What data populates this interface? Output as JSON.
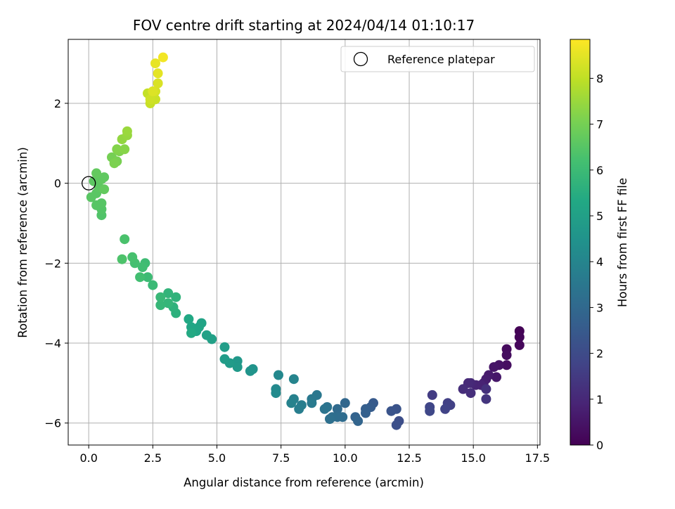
{
  "chart_data": {
    "type": "scatter",
    "title": "FOV centre drift starting at 2024/04/14 01:10:17",
    "xlabel": "Angular distance from reference (arcmin)",
    "ylabel": "Rotation from reference (arcmin)",
    "xlim": [
      -0.8,
      17.6
    ],
    "ylim": [
      -6.55,
      3.6
    ],
    "xticks": [
      0.0,
      2.5,
      5.0,
      7.5,
      10.0,
      12.5,
      15.0,
      17.5
    ],
    "xtick_labels": [
      "0.0",
      "2.5",
      "5.0",
      "7.5",
      "10.0",
      "12.5",
      "15.0",
      "17.5"
    ],
    "yticks": [
      -6,
      -4,
      -2,
      0,
      2
    ],
    "ytick_labels": [
      "−6",
      "−4",
      "−2",
      "0",
      "2"
    ],
    "grid": true,
    "legend": {
      "position": "upper right",
      "entries": [
        "Reference platepar"
      ]
    },
    "reference_point": {
      "x": 0.0,
      "y": 0.0
    },
    "colorbar": {
      "label": "Hours from first FF file",
      "colormap": "viridis",
      "range": [
        0,
        8.85
      ],
      "ticks": [
        0,
        1,
        2,
        3,
        4,
        5,
        6,
        7,
        8
      ],
      "tick_labels": [
        "0",
        "1",
        "2",
        "3",
        "4",
        "5",
        "6",
        "7",
        "8"
      ]
    },
    "series": [
      {
        "columns": [
          "x",
          "y",
          "hours"
        ],
        "points": [
          [
            16.8,
            -3.7,
            0.05
          ],
          [
            16.8,
            -3.85,
            0.1
          ],
          [
            16.8,
            -4.05,
            0.15
          ],
          [
            16.3,
            -4.15,
            0.25
          ],
          [
            16.3,
            -4.3,
            0.3
          ],
          [
            16.3,
            -4.55,
            0.35
          ],
          [
            16.0,
            -4.55,
            0.45
          ],
          [
            15.8,
            -4.6,
            0.5
          ],
          [
            15.9,
            -4.85,
            0.55
          ],
          [
            15.6,
            -4.8,
            0.65
          ],
          [
            15.5,
            -4.9,
            0.7
          ],
          [
            15.4,
            -5.0,
            0.75
          ],
          [
            15.3,
            -5.05,
            0.85
          ],
          [
            15.1,
            -5.05,
            0.9
          ],
          [
            14.9,
            -5.0,
            1.0
          ],
          [
            14.8,
            -5.0,
            1.05
          ],
          [
            14.6,
            -5.15,
            1.15
          ],
          [
            14.9,
            -5.25,
            1.2
          ],
          [
            15.5,
            -5.15,
            1.25
          ],
          [
            15.5,
            -5.4,
            1.35
          ],
          [
            13.4,
            -5.3,
            1.55
          ],
          [
            14.0,
            -5.5,
            1.65
          ],
          [
            14.1,
            -5.55,
            1.7
          ],
          [
            13.9,
            -5.65,
            1.75
          ],
          [
            13.3,
            -5.6,
            1.85
          ],
          [
            13.3,
            -5.7,
            1.9
          ],
          [
            12.1,
            -5.95,
            2.1
          ],
          [
            12.0,
            -6.05,
            2.15
          ],
          [
            12.0,
            -5.65,
            2.25
          ],
          [
            11.8,
            -5.7,
            2.3
          ],
          [
            11.1,
            -5.5,
            2.5
          ],
          [
            11.0,
            -5.6,
            2.55
          ],
          [
            10.8,
            -5.65,
            2.65
          ],
          [
            10.8,
            -5.75,
            2.7
          ],
          [
            10.4,
            -5.85,
            2.8
          ],
          [
            10.5,
            -5.95,
            2.85
          ],
          [
            10.0,
            -5.5,
            2.95
          ],
          [
            9.7,
            -5.65,
            3.05
          ],
          [
            9.9,
            -5.85,
            3.1
          ],
          [
            9.7,
            -5.85,
            3.15
          ],
          [
            9.5,
            -5.85,
            3.2
          ],
          [
            9.4,
            -5.9,
            3.25
          ],
          [
            9.3,
            -5.6,
            3.35
          ],
          [
            9.2,
            -5.65,
            3.4
          ],
          [
            8.9,
            -5.3,
            3.5
          ],
          [
            8.7,
            -5.4,
            3.55
          ],
          [
            8.7,
            -5.5,
            3.6
          ],
          [
            8.3,
            -5.55,
            3.7
          ],
          [
            8.2,
            -5.65,
            3.75
          ],
          [
            8.0,
            -5.4,
            3.85
          ],
          [
            7.9,
            -5.5,
            3.9
          ],
          [
            8.0,
            -4.9,
            3.95
          ],
          [
            7.4,
            -4.8,
            4.1
          ],
          [
            7.3,
            -5.15,
            4.15
          ],
          [
            7.3,
            -5.25,
            4.2
          ],
          [
            6.4,
            -4.65,
            4.5
          ],
          [
            6.3,
            -4.7,
            4.55
          ],
          [
            5.8,
            -4.45,
            4.7
          ],
          [
            5.8,
            -4.6,
            4.75
          ],
          [
            5.5,
            -4.5,
            4.8
          ],
          [
            5.3,
            -4.4,
            4.85
          ],
          [
            5.3,
            -4.1,
            4.9
          ],
          [
            4.8,
            -3.9,
            5.0
          ],
          [
            4.6,
            -3.8,
            5.05
          ],
          [
            4.4,
            -3.5,
            5.1
          ],
          [
            4.3,
            -3.6,
            5.15
          ],
          [
            4.2,
            -3.7,
            5.2
          ],
          [
            4.0,
            -3.6,
            5.25
          ],
          [
            3.9,
            -3.4,
            5.3
          ],
          [
            4.0,
            -3.75,
            5.35
          ],
          [
            3.4,
            -3.25,
            5.6
          ],
          [
            3.3,
            -3.1,
            5.65
          ],
          [
            3.4,
            -2.85,
            5.7
          ],
          [
            3.1,
            -2.75,
            5.75
          ],
          [
            3.1,
            -3.0,
            5.8
          ],
          [
            2.8,
            -3.05,
            5.85
          ],
          [
            2.8,
            -2.85,
            5.9
          ],
          [
            2.5,
            -2.55,
            5.95
          ],
          [
            2.3,
            -2.35,
            6.0
          ],
          [
            2.2,
            -2.0,
            6.05
          ],
          [
            2.1,
            -2.1,
            6.1
          ],
          [
            2.0,
            -2.35,
            6.15
          ],
          [
            1.8,
            -2.0,
            6.2
          ],
          [
            1.7,
            -1.85,
            6.25
          ],
          [
            1.4,
            -1.4,
            6.3
          ],
          [
            1.3,
            -1.9,
            6.35
          ],
          [
            0.5,
            -0.8,
            6.4
          ],
          [
            0.5,
            -0.65,
            6.45
          ],
          [
            0.5,
            -0.5,
            6.5
          ],
          [
            0.3,
            -0.55,
            6.5
          ],
          [
            0.1,
            -0.35,
            6.55
          ],
          [
            0.3,
            -0.25,
            6.55
          ],
          [
            0.4,
            -0.1,
            6.6
          ],
          [
            0.2,
            0.05,
            6.6
          ],
          [
            0.5,
            0.1,
            6.65
          ],
          [
            0.6,
            0.15,
            6.65
          ],
          [
            0.6,
            -0.15,
            6.7
          ],
          [
            0.3,
            0.25,
            6.7
          ],
          [
            0.9,
            0.65,
            7.0
          ],
          [
            1.1,
            0.55,
            7.05
          ],
          [
            1.0,
            0.5,
            7.1
          ],
          [
            1.2,
            0.8,
            7.15
          ],
          [
            1.1,
            0.85,
            7.2
          ],
          [
            1.4,
            0.85,
            7.25
          ],
          [
            1.3,
            1.1,
            7.4
          ],
          [
            1.5,
            1.2,
            7.45
          ],
          [
            1.5,
            1.3,
            7.5
          ],
          [
            2.3,
            2.25,
            8.05
          ],
          [
            2.4,
            2.0,
            8.1
          ],
          [
            2.6,
            2.1,
            8.15
          ],
          [
            2.4,
            2.1,
            8.2
          ],
          [
            2.6,
            2.3,
            8.3
          ],
          [
            2.7,
            2.5,
            8.35
          ],
          [
            2.5,
            2.3,
            8.4
          ],
          [
            2.7,
            2.75,
            8.5
          ],
          [
            2.6,
            3.0,
            8.55
          ],
          [
            2.9,
            3.15,
            8.7
          ]
        ]
      }
    ]
  }
}
